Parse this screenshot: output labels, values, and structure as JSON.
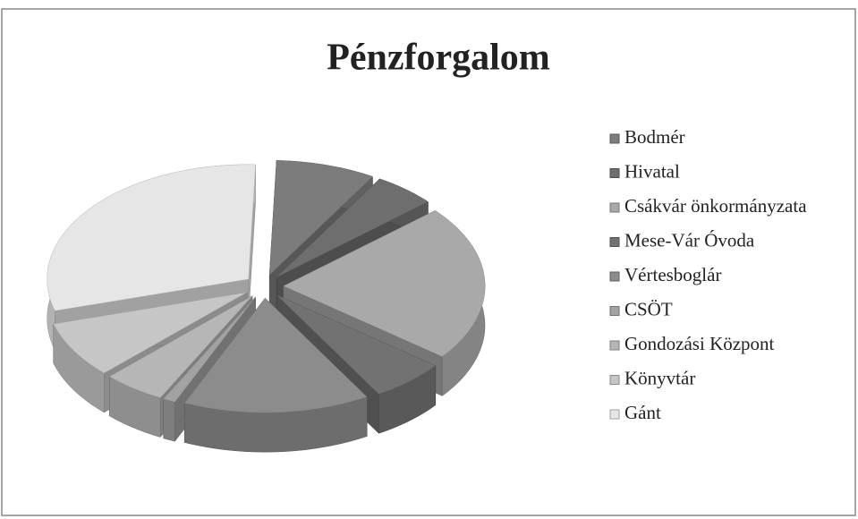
{
  "chart_data": {
    "type": "pie3d",
    "title": "Pénzforgalom",
    "categories": [
      "Bodmér",
      "Hivatal",
      "Csákvár önkormányzata",
      "Mese-Vár Óvoda",
      "Vértesboglár",
      "CSÖT",
      "Gondozási Központ",
      "Könyvtár",
      "Gánt"
    ],
    "values": [
      8,
      5,
      22,
      6,
      15,
      1,
      5,
      8,
      30
    ],
    "colors": [
      "#7c7c7c",
      "#6e6e6e",
      "#a9a9a9",
      "#727272",
      "#8c8c8c",
      "#a2a2a2",
      "#b6b6b6",
      "#c6c6c6",
      "#e6e6e6"
    ],
    "legend": "right"
  }
}
